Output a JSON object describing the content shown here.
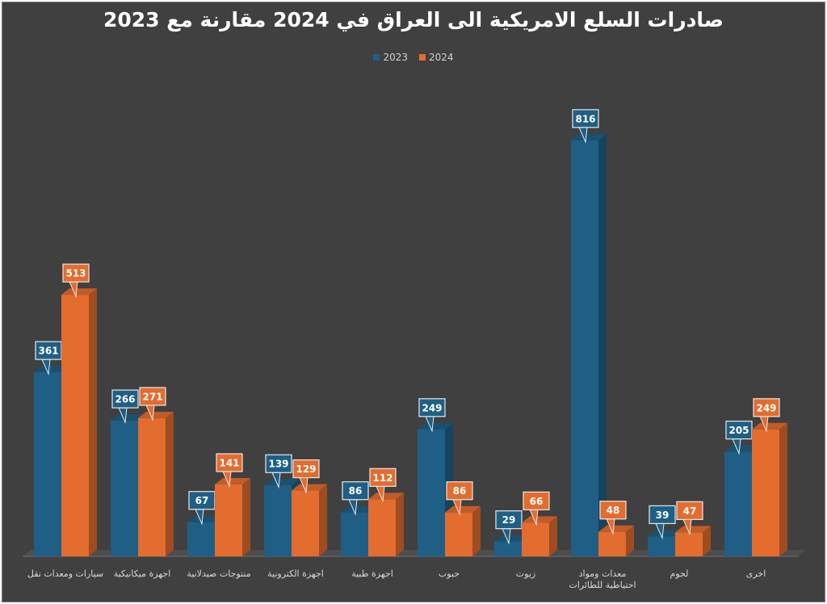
{
  "chart_data": {
    "type": "bar",
    "title": "صادرات السلع الامريكية الى العراق في 2024 مقارنة مع 2023",
    "categories": [
      "سيارات ومعدات نقل",
      "اجهزة ميكانيكية",
      "منتوجات صيدلانية",
      "اجهزة الكترونية",
      "اجهزة طبية",
      "حبوب",
      "زيوت",
      "معدات ومواد احتياطية للطائرات",
      "لحوم",
      "اخرى"
    ],
    "series": [
      {
        "name": "2023",
        "color": "#1f5f85",
        "values": [
          361,
          266,
          67,
          139,
          86,
          249,
          29,
          816,
          39,
          205
        ]
      },
      {
        "name": "2024",
        "color": "#e36c2f",
        "values": [
          513,
          271,
          141,
          129,
          112,
          86,
          66,
          48,
          47,
          249
        ]
      }
    ],
    "ylim": [
      0,
      850
    ],
    "grid": false,
    "legend_position": "top"
  }
}
